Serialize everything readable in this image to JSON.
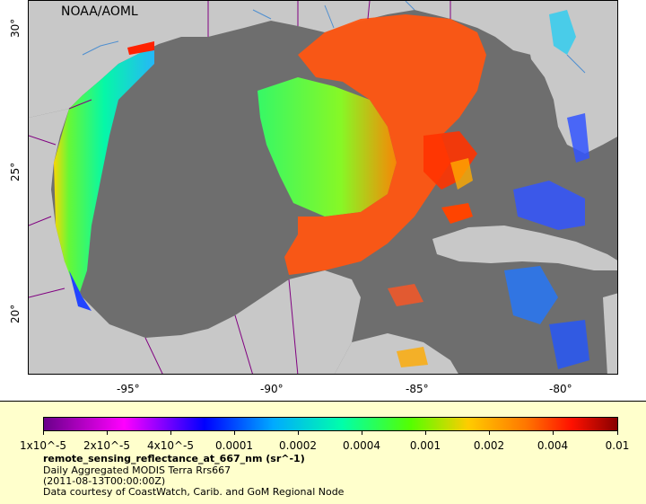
{
  "map": {
    "watermark": "NOAA/AOML",
    "lat_ticks": [
      "30°",
      "25°",
      "20°"
    ],
    "lon_ticks": [
      "-95°",
      "-90°",
      "-85°",
      "-80°"
    ],
    "land_color": "#c8c8c8",
    "nodata_color": "#6e6e6e",
    "border_color": "#800080",
    "river_color": "#4f8fd0"
  },
  "legend": {
    "tick_labels": [
      "1x10^-5",
      "2x10^-5",
      "4x10^-5",
      "0.0001",
      "0.0002",
      "0.0004",
      "0.001",
      "0.002",
      "0.004",
      "0.01"
    ],
    "variable": "remote_sensing_reflectance_at_667_nm (sr^-1)",
    "dataset": "Daily Aggregated MODIS Terra Rrs667",
    "time": "(2011-08-13T00:00:00Z)",
    "credit": "Data courtesy of CoastWatch, Carib. and GoM Regional Node"
  }
}
